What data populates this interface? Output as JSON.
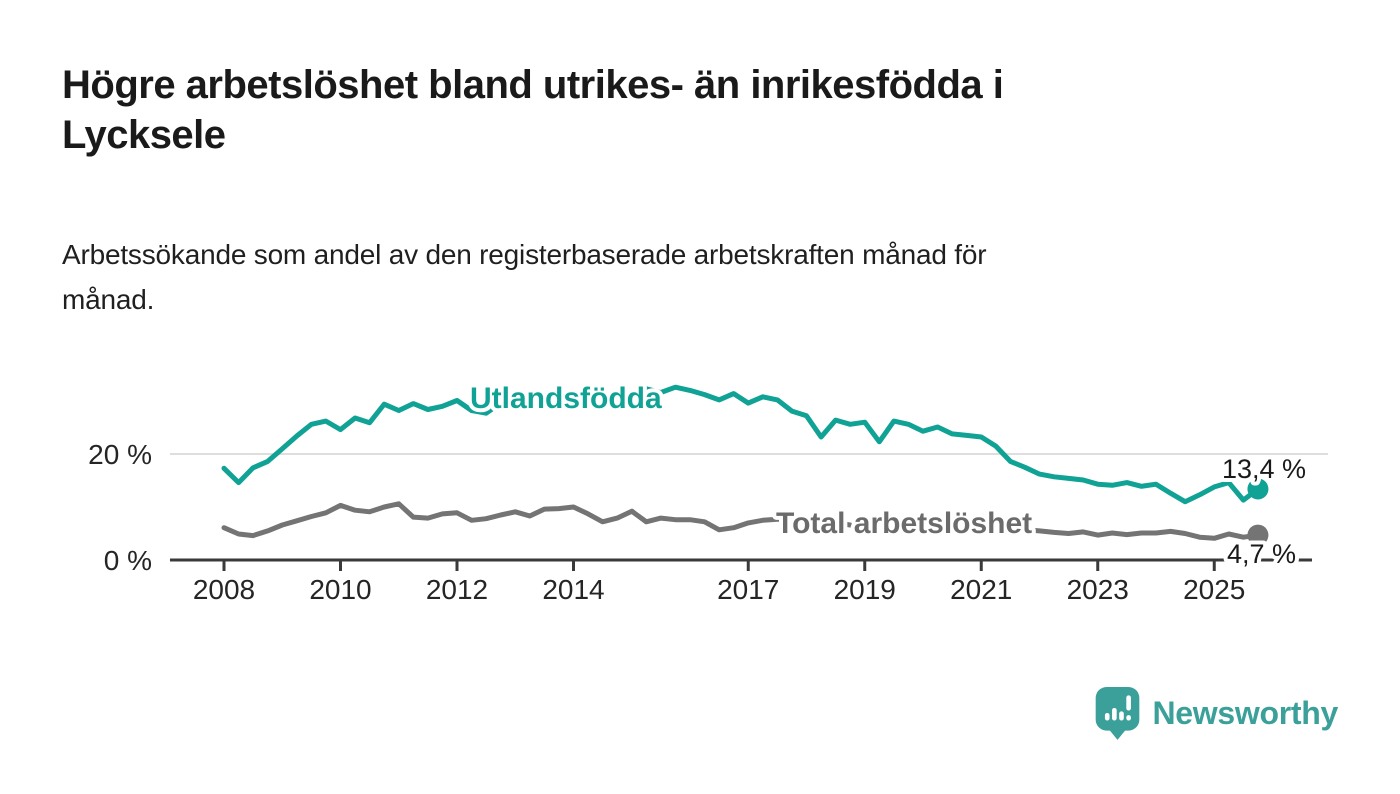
{
  "chart_data": {
    "type": "line",
    "title": "Högre arbetslöshet bland utrikes- än inrikesfödda i Lycksele",
    "title_lines": [
      "Högre arbetslöshet bland utrikes- än inrikesfödda i",
      "Lycksele"
    ],
    "subtitle": "Arbetssökande som andel av den registerbaserade arbetskraften månad för månad.",
    "subtitle_lines": [
      "Arbetssökande som andel av den registerbaserade arbetskraften månad för",
      "månad."
    ],
    "xlabel": "",
    "ylabel": "",
    "x_unit": "year",
    "x_start": 2008,
    "x_step_years": 0.25,
    "x_end": 2025.75,
    "x_ticks": [
      2008,
      2010,
      2012,
      2014,
      2017,
      2019,
      2021,
      2023,
      2025
    ],
    "y_ticks": [
      {
        "value": 0,
        "label": "0 %"
      },
      {
        "value": 20,
        "label": "20 %"
      }
    ],
    "ylim": [
      0,
      34
    ],
    "grid": "horizontal-at-20-only",
    "legend_position": "inline-labels-on-lines",
    "series": [
      {
        "name": "Utlandsfödda",
        "color": "#10a295",
        "label_color": "#10a295",
        "end_label": "13,4 %",
        "end_value": 13.4,
        "values": [
          17.3,
          14.6,
          17.4,
          18.6,
          21.0,
          23.4,
          25.6,
          26.2,
          24.6,
          26.8,
          25.9,
          29.4,
          28.2,
          29.5,
          28.4,
          29.0,
          30.1,
          28.2,
          27.7,
          29.6,
          30.6,
          29.4,
          30.9,
          30.2,
          31.1,
          30.4,
          31.5,
          30.8,
          31.0,
          32.3,
          31.6,
          32.6,
          32.0,
          31.2,
          30.2,
          31.4,
          29.6,
          30.8,
          30.2,
          28.1,
          27.2,
          23.2,
          26.4,
          25.6,
          26.0,
          22.3,
          26.2,
          25.6,
          24.3,
          25.1,
          23.8,
          23.5,
          23.2,
          21.5,
          18.6,
          17.5,
          16.2,
          15.7,
          15.4,
          15.1,
          14.3,
          14.1,
          14.6,
          13.9,
          14.3,
          12.6,
          11.0,
          12.3,
          13.8,
          14.6,
          11.3,
          13.4
        ]
      },
      {
        "name": "Total arbetslöshet",
        "color": "#747474",
        "label_color": "#6b6b6b",
        "end_label": "4,7 %",
        "end_value": 4.7,
        "values": [
          6.1,
          4.9,
          4.6,
          5.5,
          6.6,
          7.4,
          8.2,
          8.9,
          10.3,
          9.4,
          9.1,
          10.0,
          10.6,
          8.1,
          7.9,
          8.7,
          8.9,
          7.5,
          7.8,
          8.5,
          9.1,
          8.3,
          9.6,
          9.7,
          10.0,
          8.7,
          7.2,
          7.9,
          9.2,
          7.2,
          7.9,
          7.6,
          7.6,
          7.2,
          5.7,
          6.1,
          7.0,
          7.5,
          7.7,
          7.4,
          7.2,
          6.8,
          7.0,
          6.6,
          6.4,
          6.6,
          6.2,
          6.0,
          6.2,
          6.6,
          6.4,
          6.1,
          6.0,
          5.8,
          5.6,
          5.7,
          5.5,
          5.2,
          5.0,
          5.3,
          4.7,
          5.1,
          4.8,
          5.1,
          5.1,
          5.4,
          5.0,
          4.3,
          4.1,
          4.9,
          4.3,
          4.7
        ]
      }
    ],
    "colors": {
      "axis": "#3a3a3a",
      "gridline": "#dedede",
      "tick_label": "#252525",
      "annotation_text": "#1a1a1a"
    }
  },
  "footer": {
    "brand": "Newsworthy",
    "brand_color": "#3aa099",
    "logo_icon": "speech-bubble-bar-chart-icon"
  }
}
